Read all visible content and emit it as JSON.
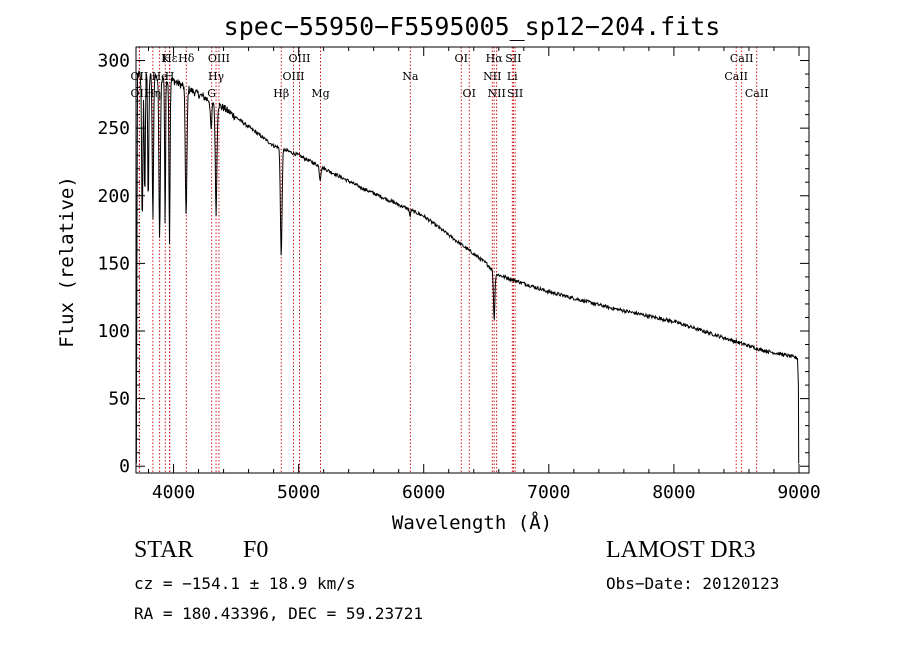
{
  "chart_data": {
    "type": "line",
    "title": "spec−55950−F5595005_sp12−204.fits",
    "xlabel": "Wavelength (Å)",
    "ylabel": "Flux (relative)",
    "xlim": [
      3700,
      9080
    ],
    "ylim": [
      -5,
      310
    ],
    "xticks": [
      4000,
      5000,
      6000,
      7000,
      8000,
      9000
    ],
    "yticks": [
      0,
      50,
      100,
      150,
      200,
      250,
      300
    ],
    "continuum": [
      [
        3700,
        290
      ],
      [
        4000,
        285
      ],
      [
        4400,
        265
      ],
      [
        4800,
        237
      ],
      [
        5000,
        230
      ],
      [
        5500,
        206
      ],
      [
        6000,
        185
      ],
      [
        6500,
        150
      ],
      [
        6580,
        142
      ],
      [
        7000,
        129
      ],
      [
        7500,
        117
      ],
      [
        8000,
        107
      ],
      [
        8500,
        92
      ],
      [
        8700,
        86
      ],
      [
        8900,
        82
      ],
      [
        8990,
        80
      ]
    ],
    "absorption": [
      {
        "x": 3750,
        "depth": 110,
        "width": 7
      },
      {
        "x": 3770,
        "depth": 90,
        "width": 6
      },
      {
        "x": 3798,
        "depth": 95,
        "width": 6
      },
      {
        "x": 3835,
        "depth": 105,
        "width": 7
      },
      {
        "x": 3889,
        "depth": 120,
        "width": 8
      },
      {
        "x": 3933,
        "depth": 110,
        "width": 5
      },
      {
        "x": 3968,
        "depth": 120,
        "width": 6
      },
      {
        "x": 4101,
        "depth": 95,
        "width": 9
      },
      {
        "x": 4300,
        "depth": 22,
        "width": 8
      },
      {
        "x": 4340,
        "depth": 80,
        "width": 9
      },
      {
        "x": 4861,
        "depth": 80,
        "width": 9
      },
      {
        "x": 5172,
        "depth": 10,
        "width": 8
      },
      {
        "x": 5890,
        "depth": 6,
        "width": 5
      },
      {
        "x": 6563,
        "depth": 35,
        "width": 8
      }
    ],
    "lines": [
      {
        "name": "Hε",
        "x": 3970,
        "row": 0
      },
      {
        "name": "K",
        "x": 3934,
        "row": 0
      },
      {
        "name": "Hδ",
        "x": 4102,
        "row": 0
      },
      {
        "name": "OIII",
        "x": 4363,
        "row": 0
      },
      {
        "name": "OIII",
        "x": 5007,
        "row": 0
      },
      {
        "name": "OI",
        "x": 6300,
        "row": 0
      },
      {
        "name": "Hα",
        "x": 6563,
        "row": 0
      },
      {
        "name": "SII",
        "x": 6717,
        "row": 0
      },
      {
        "name": "CaII",
        "x": 8542,
        "row": 0
      },
      {
        "name": "OII",
        "x": 3727,
        "row": 1
      },
      {
        "name": "He",
        "x": 3889,
        "row": 1
      },
      {
        "name": "H",
        "x": 3968,
        "row": 1
      },
      {
        "name": "Hγ",
        "x": 4340,
        "row": 1
      },
      {
        "name": "OIII",
        "x": 4959,
        "row": 1
      },
      {
        "name": "Na",
        "x": 5893,
        "row": 1
      },
      {
        "name": "NII",
        "x": 6548,
        "row": 1
      },
      {
        "name": "Li",
        "x": 6708,
        "row": 1
      },
      {
        "name": "CaII",
        "x": 8498,
        "row": 1
      },
      {
        "name": "OII",
        "x": 3727,
        "row": 2
      },
      {
        "name": "Hη",
        "x": 3835,
        "row": 2
      },
      {
        "name": "G",
        "x": 4305,
        "row": 2
      },
      {
        "name": "Hβ",
        "x": 4861,
        "row": 2
      },
      {
        "name": "Mg",
        "x": 5175,
        "row": 2
      },
      {
        "name": "OI",
        "x": 6364,
        "row": 2
      },
      {
        "name": "NII",
        "x": 6583,
        "row": 2
      },
      {
        "name": "SII",
        "x": 6731,
        "row": 2
      },
      {
        "name": "CaII",
        "x": 8662,
        "row": 2
      }
    ]
  },
  "info": {
    "class": "STAR",
    "subclass": "F0",
    "survey": "LAMOST DR3",
    "cz": "cz = −154.1 ± 18.9 km/s",
    "obs_date": "Obs−Date: 20120123",
    "radec": "RA = 180.43396, DEC =  59.23721"
  }
}
